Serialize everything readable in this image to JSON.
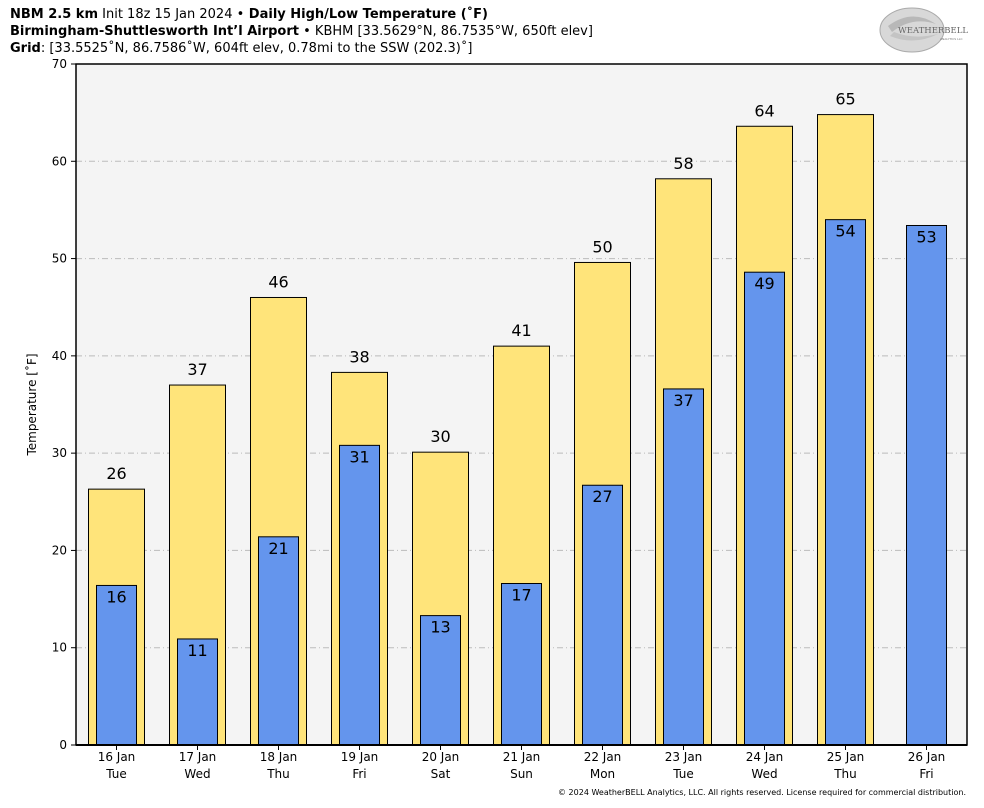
{
  "header": {
    "line1": {
      "model": "NBM 2.5 km",
      "init": " Init 18z 15 Jan 2024 ",
      "bullet": "•",
      "product": " Daily High/Low Temperature (˚F)"
    },
    "line2": {
      "station": "Birmingham-Shuttlesworth Int’l Airport",
      "bullet": " • ",
      "details": "KBHM [33.5629°N, 86.7535°W, 650ft elev]"
    },
    "line3": {
      "label": "Grid",
      "details": ": [33.5525˚N, 86.7586˚W, 604ft elev, 0.78mi to the SSW (202.3)˚]"
    }
  },
  "logo": {
    "text_main": "WEATHERBELL",
    "text_sub": "ANALYTICS LLC"
  },
  "copyright": "© 2024 WeatherBELL Analytics, LLC. All rights reserved. License required for commercial distribution.",
  "colors": {
    "high_bar": "#FFE47A",
    "low_bar": "#6495ED",
    "plot_bg": "#F4F4F4",
    "grid": "#BBBBBB"
  },
  "chart_data": {
    "type": "bar",
    "ylabel": "Temperature [˚F]",
    "ylim": [
      0,
      70
    ],
    "yticks": [
      0,
      10,
      20,
      30,
      40,
      50,
      60,
      70
    ],
    "grid": true,
    "categories": [
      "16 Jan",
      "17 Jan",
      "18 Jan",
      "19 Jan",
      "20 Jan",
      "21 Jan",
      "22 Jan",
      "23 Jan",
      "24 Jan",
      "25 Jan",
      "26 Jan"
    ],
    "weekdays": [
      "Tue",
      "Wed",
      "Thu",
      "Fri",
      "Sat",
      "Sun",
      "Mon",
      "Tue",
      "Wed",
      "Thu",
      "Fri"
    ],
    "series": [
      {
        "key": "high",
        "values": [
          26.3,
          37.0,
          46.0,
          38.3,
          30.1,
          41.0,
          49.6,
          58.2,
          63.6,
          64.8,
          null
        ],
        "labels": [
          "26",
          "37",
          "46",
          "38",
          "30",
          "41",
          "50",
          "58",
          "64",
          "65",
          ""
        ]
      },
      {
        "key": "low",
        "values": [
          16.4,
          10.9,
          21.4,
          30.8,
          13.3,
          16.6,
          26.7,
          36.6,
          48.6,
          54.0,
          53.4
        ],
        "labels": [
          "16",
          "11",
          "21",
          "31",
          "13",
          "17",
          "27",
          "37",
          "49",
          "54",
          "53"
        ]
      }
    ]
  }
}
